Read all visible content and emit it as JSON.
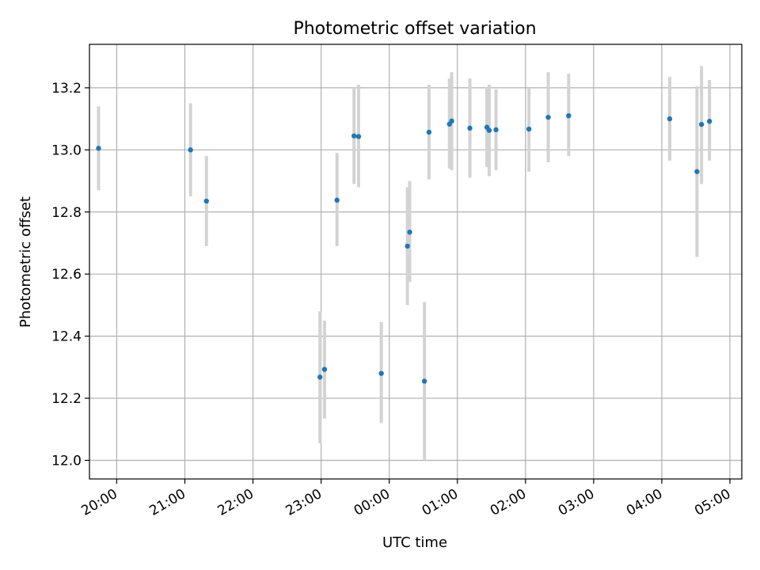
{
  "chart_data": {
    "type": "scatter",
    "title": "Photometric offset variation",
    "xlabel": "UTC time",
    "ylabel": "Photometric offset",
    "x_unit": "hours (UTC, continuing past midnight)",
    "xlim": [
      "19:36",
      "05:00"
    ],
    "ylim": [
      11.94,
      13.34
    ],
    "grid": true,
    "x_ticks": [
      {
        "value": "20:00",
        "label": "20:00"
      },
      {
        "value": "21:00",
        "label": "21:00"
      },
      {
        "value": "22:00",
        "label": "22:00"
      },
      {
        "value": "23:00",
        "label": "23:00"
      },
      {
        "value": "00:00",
        "label": "00:00"
      },
      {
        "value": "01:00",
        "label": "01:00"
      },
      {
        "value": "02:00",
        "label": "02:00"
      },
      {
        "value": "03:00",
        "label": "03:00"
      },
      {
        "value": "04:00",
        "label": "04:00"
      },
      {
        "value": "05:00",
        "label": "05:00"
      }
    ],
    "y_ticks": [
      {
        "value": 12.0,
        "label": "12.0"
      },
      {
        "value": 12.2,
        "label": "12.2"
      },
      {
        "value": 12.4,
        "label": "12.4"
      },
      {
        "value": 12.6,
        "label": "12.6"
      },
      {
        "value": 12.8,
        "label": "12.8"
      },
      {
        "value": 13.0,
        "label": "13.0"
      },
      {
        "value": 13.2,
        "label": "13.2"
      }
    ],
    "colors": {
      "point": "#1f77b4",
      "errorbar": "#d3d3d3",
      "grid": "#b0b0b0"
    },
    "points": [
      {
        "x": "19:44",
        "y": 13.005,
        "err_low": 12.87,
        "err_high": 13.14
      },
      {
        "x": "21:05",
        "y": 13.0,
        "err_low": 12.85,
        "err_high": 13.15
      },
      {
        "x": "21:19",
        "y": 12.835,
        "err_low": 12.69,
        "err_high": 12.98
      },
      {
        "x": "22:59",
        "y": 12.268,
        "err_low": 12.055,
        "err_high": 12.48
      },
      {
        "x": "23:03",
        "y": 12.293,
        "err_low": 12.135,
        "err_high": 12.45
      },
      {
        "x": "23:14",
        "y": 12.838,
        "err_low": 12.69,
        "err_high": 12.99
      },
      {
        "x": "23:29",
        "y": 13.045,
        "err_low": 12.89,
        "err_high": 13.2
      },
      {
        "x": "23:33",
        "y": 13.043,
        "err_low": 12.88,
        "err_high": 13.21
      },
      {
        "x": "23:53",
        "y": 12.28,
        "err_low": 12.12,
        "err_high": 12.445
      },
      {
        "x": "00:16",
        "y": 12.69,
        "err_low": 12.5,
        "err_high": 12.88
      },
      {
        "x": "00:18",
        "y": 12.735,
        "err_low": 12.575,
        "err_high": 12.9
      },
      {
        "x": "00:31",
        "y": 12.255,
        "err_low": 12.0,
        "err_high": 12.51
      },
      {
        "x": "00:35",
        "y": 13.057,
        "err_low": 12.905,
        "err_high": 13.21
      },
      {
        "x": "00:53",
        "y": 13.083,
        "err_low": 12.94,
        "err_high": 13.23
      },
      {
        "x": "00:55",
        "y": 13.093,
        "err_low": 12.935,
        "err_high": 13.25
      },
      {
        "x": "01:11",
        "y": 13.07,
        "err_low": 12.91,
        "err_high": 13.23
      },
      {
        "x": "01:26",
        "y": 13.073,
        "err_low": 12.945,
        "err_high": 13.2
      },
      {
        "x": "01:28",
        "y": 13.063,
        "err_low": 12.915,
        "err_high": 13.21
      },
      {
        "x": "01:34",
        "y": 13.065,
        "err_low": 12.935,
        "err_high": 13.195
      },
      {
        "x": "02:03",
        "y": 13.067,
        "err_low": 12.93,
        "err_high": 13.2
      },
      {
        "x": "02:20",
        "y": 13.105,
        "err_low": 12.96,
        "err_high": 13.25
      },
      {
        "x": "02:38",
        "y": 13.11,
        "err_low": 12.98,
        "err_high": 13.245
      },
      {
        "x": "04:07",
        "y": 13.1,
        "err_low": 12.965,
        "err_high": 13.235
      },
      {
        "x": "04:31",
        "y": 12.93,
        "err_low": 12.655,
        "err_high": 13.205
      },
      {
        "x": "04:35",
        "y": 13.082,
        "err_low": 12.89,
        "err_high": 13.27
      },
      {
        "x": "04:42",
        "y": 13.092,
        "err_low": 12.965,
        "err_high": 13.225
      }
    ]
  }
}
